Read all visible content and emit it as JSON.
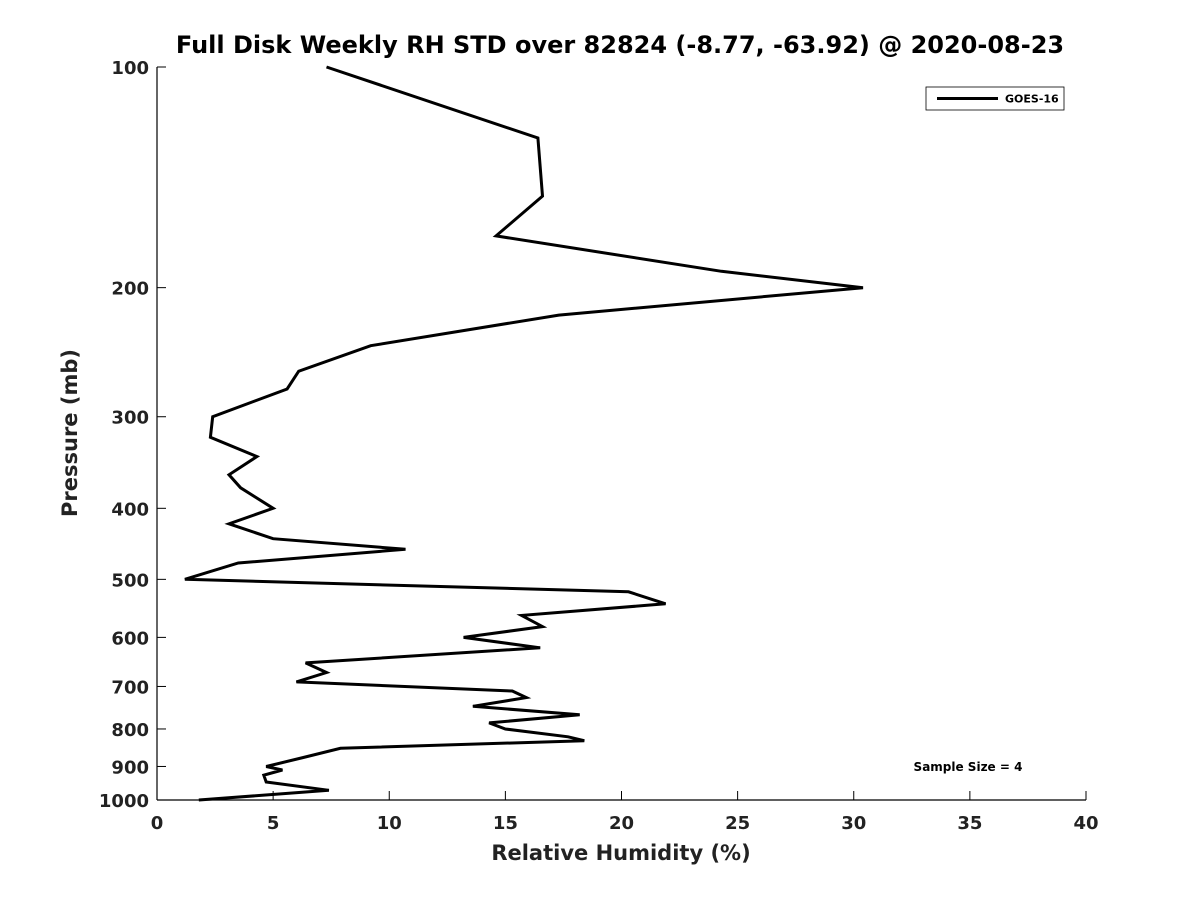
{
  "chart_data": {
    "type": "line",
    "title": "Full Disk Weekly RH STD over 82824 (-8.77, -63.92) @ 2020-08-23",
    "xlabel": "Relative Humidity (%)",
    "ylabel": "Pressure (mb)",
    "xlim": [
      0,
      40
    ],
    "ylim": [
      100,
      1000
    ],
    "y_scale": "log",
    "y_reversed": true,
    "x_ticks": [
      0,
      5,
      10,
      15,
      20,
      25,
      30,
      35,
      40
    ],
    "y_ticks": [
      100,
      200,
      300,
      400,
      500,
      600,
      700,
      800,
      900,
      1000
    ],
    "grid": false,
    "legend_position": "top-right",
    "annotation": "Sample Size = 4",
    "series": [
      {
        "name": "GOES-16",
        "color": "#000000",
        "points": [
          [
            7.3,
            100
          ],
          [
            16.4,
            125
          ],
          [
            16.6,
            150
          ],
          [
            14.6,
            170
          ],
          [
            24.3,
            190
          ],
          [
            30.4,
            200
          ],
          [
            17.3,
            218
          ],
          [
            9.2,
            240
          ],
          [
            6.1,
            260
          ],
          [
            5.6,
            275
          ],
          [
            2.4,
            300
          ],
          [
            2.3,
            320
          ],
          [
            4.3,
            340
          ],
          [
            3.1,
            360
          ],
          [
            3.6,
            375
          ],
          [
            5.0,
            400
          ],
          [
            3.1,
            420
          ],
          [
            5.0,
            440
          ],
          [
            10.7,
            455
          ],
          [
            3.5,
            475
          ],
          [
            1.2,
            500
          ],
          [
            20.3,
            520
          ],
          [
            21.9,
            540
          ],
          [
            15.7,
            560
          ],
          [
            16.6,
            580
          ],
          [
            13.2,
            600
          ],
          [
            16.5,
            620
          ],
          [
            6.4,
            650
          ],
          [
            7.3,
            670
          ],
          [
            6.0,
            690
          ],
          [
            15.3,
            710
          ],
          [
            15.9,
            725
          ],
          [
            13.6,
            745
          ],
          [
            18.2,
            765
          ],
          [
            14.3,
            785
          ],
          [
            15.0,
            800
          ],
          [
            17.7,
            820
          ],
          [
            18.4,
            830
          ],
          [
            7.9,
            850
          ],
          [
            6.3,
            875
          ],
          [
            4.7,
            900
          ],
          [
            5.4,
            910
          ],
          [
            4.6,
            925
          ],
          [
            4.7,
            945
          ],
          [
            7.4,
            970
          ],
          [
            1.8,
            1000
          ]
        ]
      }
    ]
  }
}
